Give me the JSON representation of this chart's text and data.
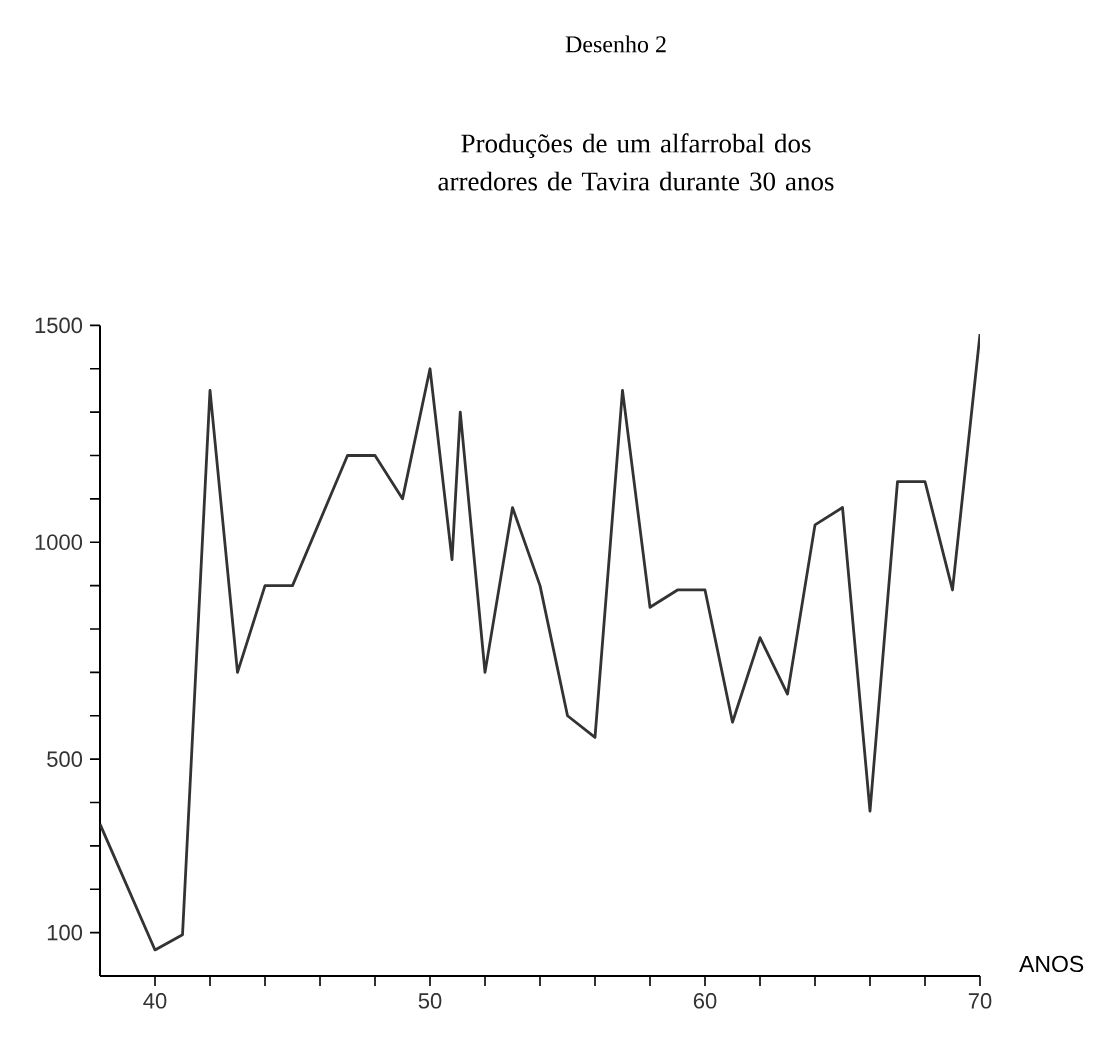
{
  "chart_data": {
    "type": "line",
    "title": "Produções de um alfarrobal dos arredores de Tavira durante 30 anos",
    "annotations": [
      "Desenho 2"
    ],
    "xlabel": "ANOS",
    "x": [
      38,
      40,
      41,
      42,
      43,
      44,
      45,
      47,
      48,
      49,
      50,
      50.8,
      51.1,
      52,
      53,
      54,
      55,
      56,
      57,
      58,
      59,
      60,
      61,
      62,
      63,
      64,
      65,
      66,
      67,
      68,
      69,
      70
    ],
    "series": [
      {
        "color": "#333333",
        "values": [
          350,
          60,
          95,
          1350,
          700,
          900,
          900,
          1200,
          1200,
          1100,
          1400,
          960,
          1300,
          700,
          1080,
          900,
          600,
          550,
          1350,
          850,
          890,
          890,
          585,
          780,
          650,
          1040,
          1080,
          380,
          1140,
          1140,
          890,
          1480
        ]
      }
    ],
    "xlim": [
      38,
      70
    ],
    "ylim": [
      0,
      1500
    ],
    "xticks": [
      40,
      {
        "value": 42,
        "label": null
      },
      {
        "value": 44,
        "label": null
      },
      {
        "value": 46,
        "label": null
      },
      {
        "value": 48,
        "label": null
      },
      50,
      {
        "value": 52,
        "label": null
      },
      {
        "value": 54,
        "label": null
      },
      {
        "value": 56,
        "label": null
      },
      {
        "value": 58,
        "label": null
      },
      60,
      {
        "value": 62,
        "label": null
      },
      {
        "value": 64,
        "label": null
      },
      {
        "value": 66,
        "label": null
      },
      {
        "value": 68,
        "label": null
      },
      70
    ],
    "yticks": [
      100,
      {
        "value": 200,
        "label": null
      },
      {
        "value": 300,
        "label": null
      },
      {
        "value": 400,
        "label": null
      },
      500,
      {
        "value": 600,
        "label": null
      },
      {
        "value": 700,
        "label": null
      },
      {
        "value": 800,
        "label": null
      },
      {
        "value": 900,
        "label": null
      },
      1000,
      {
        "value": 1100,
        "label": null
      },
      {
        "value": 1200,
        "label": null
      },
      {
        "value": 1300,
        "label": null
      },
      {
        "value": 1400,
        "label": null
      },
      1500
    ],
    "grid": false,
    "line_style": "solid"
  }
}
